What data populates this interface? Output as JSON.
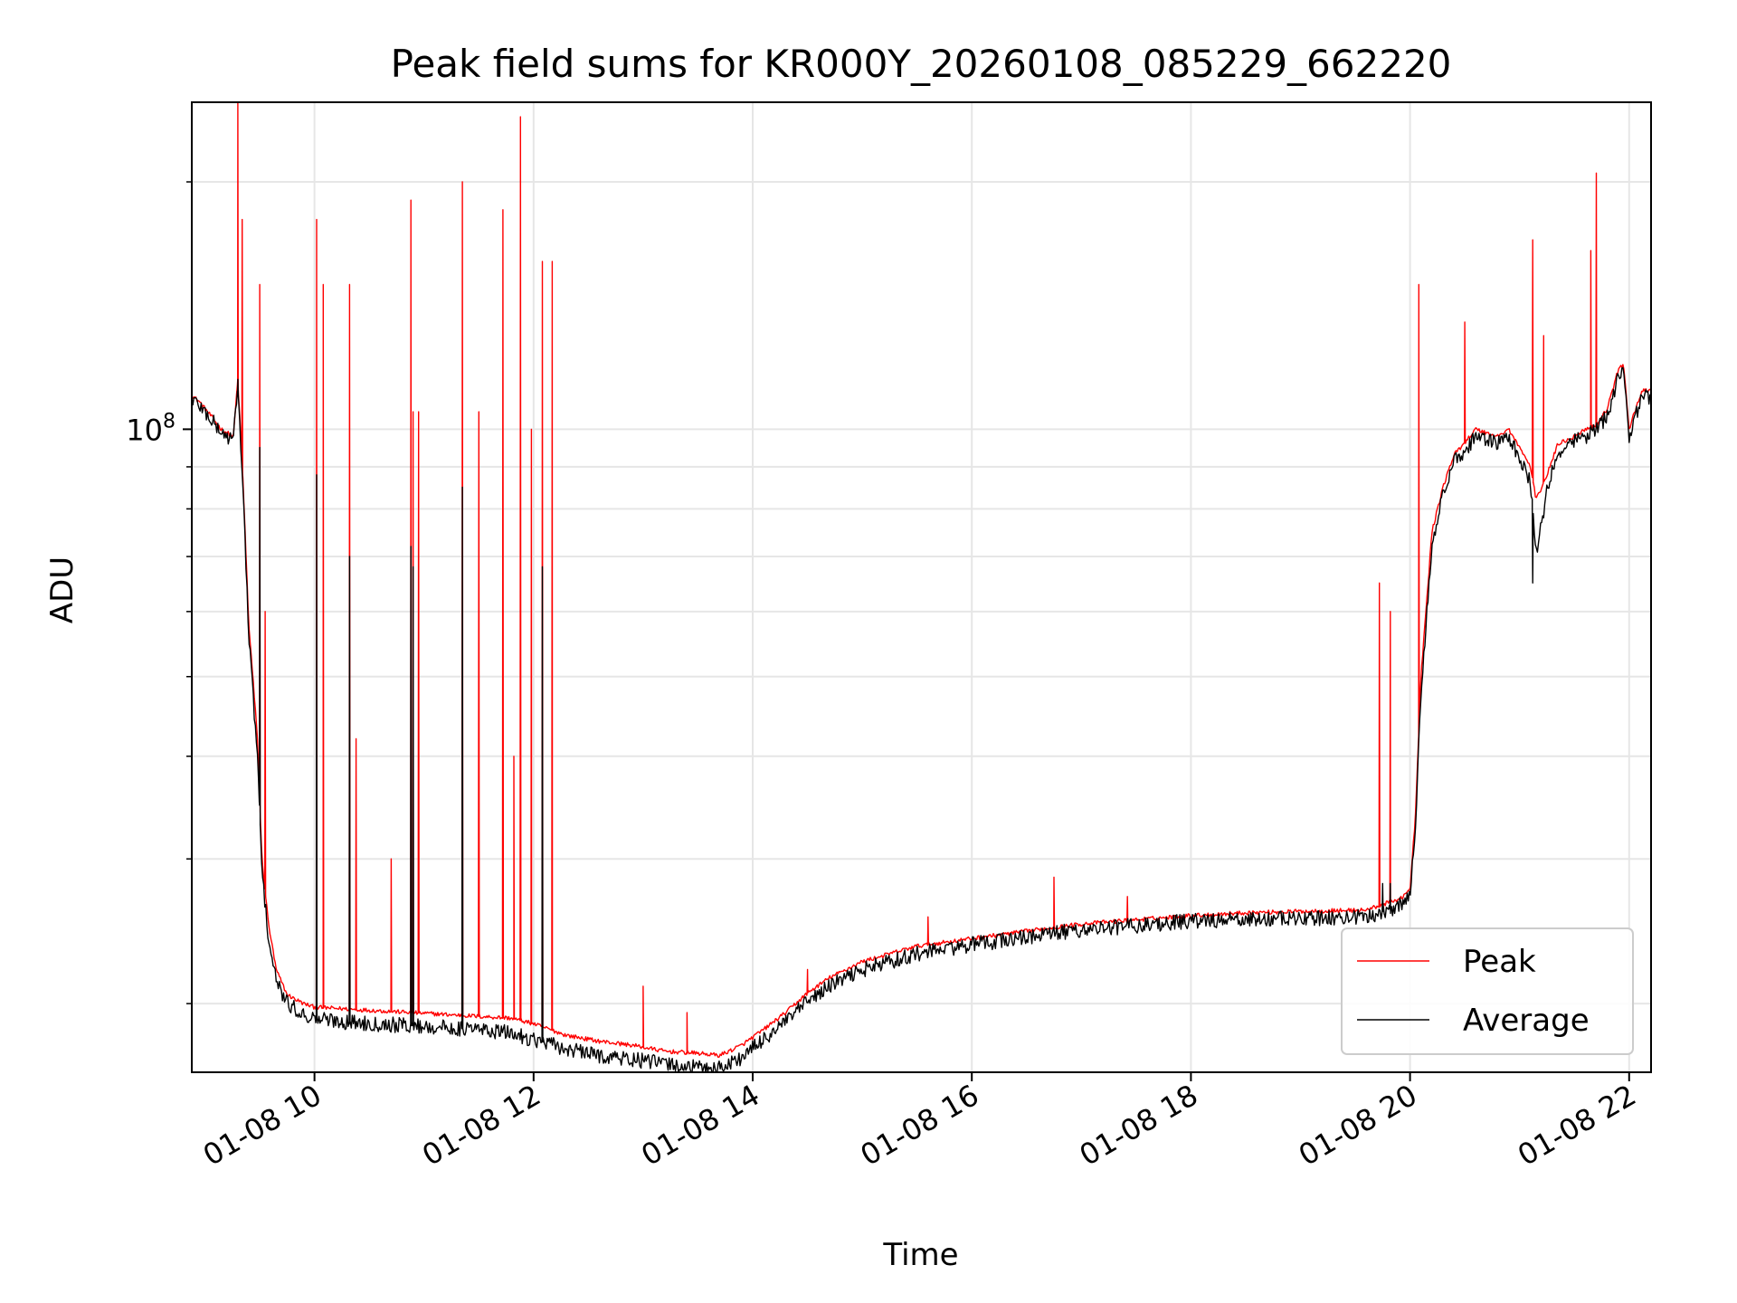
{
  "chart_data": {
    "type": "line",
    "title": "Peak field sums for KR000Y_20260108_085229_662220",
    "xlabel": "Time",
    "ylabel": "ADU",
    "yscale": "log",
    "grid": true,
    "legend_position": "lower-right",
    "xlim_hours": [
      8.88,
      22.2
    ],
    "ylim": [
      16500000,
      250000000
    ],
    "x_ticks": [
      {
        "value": 10,
        "label": "01-08 10"
      },
      {
        "value": 12,
        "label": "01-08 12"
      },
      {
        "value": 14,
        "label": "01-08 14"
      },
      {
        "value": 16,
        "label": "01-08 16"
      },
      {
        "value": 18,
        "label": "01-08 18"
      },
      {
        "value": 20,
        "label": "01-08 20"
      },
      {
        "value": 22,
        "label": "01-08 22"
      }
    ],
    "y_major_ticks": [
      {
        "value": 100000000,
        "base": "10",
        "exp": "8"
      }
    ],
    "y_minor_ticks": [
      20000000,
      30000000,
      40000000,
      50000000,
      60000000,
      70000000,
      80000000,
      90000000,
      200000000
    ],
    "x_unit": "hours since 01-08 00:00",
    "series": [
      {
        "name": "Peak",
        "color": "#ff0000",
        "x": [
          8.88,
          8.95,
          9.05,
          9.15,
          9.26,
          9.3,
          9.35,
          9.4,
          9.48,
          9.52,
          9.58,
          9.65,
          9.75,
          9.9,
          10.0,
          10.3,
          10.6,
          10.9,
          11.2,
          11.5,
          11.8,
          12.0,
          12.3,
          12.6,
          12.9,
          13.2,
          13.5,
          13.7,
          13.9,
          14.1,
          14.3,
          14.5,
          14.7,
          15.0,
          15.5,
          16.0,
          16.5,
          17.0,
          17.5,
          18.0,
          18.5,
          19.0,
          19.6,
          19.9,
          20.0,
          20.05,
          20.1,
          20.2,
          20.3,
          20.4,
          20.6,
          20.8,
          20.9,
          21.0,
          21.1,
          21.15,
          21.25,
          21.35,
          21.5,
          21.6,
          21.7,
          21.8,
          21.9,
          21.95,
          22.0,
          22.05,
          22.1,
          22.15,
          22.2
        ],
        "y": [
          110000000,
          108000000,
          104000000,
          100000000,
          98000000,
          115000000,
          85000000,
          58000000,
          42000000,
          30000000,
          25000000,
          22000000,
          20500000,
          20000000,
          19800000,
          19700000,
          19600000,
          19500000,
          19400000,
          19300000,
          19200000,
          18900000,
          18300000,
          18000000,
          17800000,
          17500000,
          17400000,
          17300000,
          17800000,
          18600000,
          19500000,
          20600000,
          21500000,
          22500000,
          23500000,
          24000000,
          24500000,
          25000000,
          25300000,
          25600000,
          25800000,
          25900000,
          26000000,
          26800000,
          27500000,
          34000000,
          50000000,
          75000000,
          85000000,
          93000000,
          100000000,
          98000000,
          100000000,
          95000000,
          90000000,
          82000000,
          88000000,
          96000000,
          98000000,
          100000000,
          101000000,
          106000000,
          118000000,
          120000000,
          100000000,
          105000000,
          110000000,
          112000000,
          111000000
        ],
        "spikes": [
          [
            9.3,
            250000000
          ],
          [
            9.34,
            180000000
          ],
          [
            9.5,
            150000000
          ],
          [
            9.55,
            60000000
          ],
          [
            10.02,
            180000000
          ],
          [
            10.08,
            150000000
          ],
          [
            10.32,
            150000000
          ],
          [
            10.38,
            42000000
          ],
          [
            10.7,
            30000000
          ],
          [
            10.88,
            190000000
          ],
          [
            10.9,
            105000000
          ],
          [
            10.95,
            105000000
          ],
          [
            11.35,
            200000000
          ],
          [
            11.5,
            105000000
          ],
          [
            11.72,
            185000000
          ],
          [
            11.82,
            40000000
          ],
          [
            11.88,
            240000000
          ],
          [
            11.98,
            100000000
          ],
          [
            12.08,
            160000000
          ],
          [
            12.17,
            160000000
          ],
          [
            13.0,
            21000000
          ],
          [
            13.4,
            19500000
          ],
          [
            14.5,
            22000000
          ],
          [
            15.6,
            25500000
          ],
          [
            16.75,
            28500000
          ],
          [
            17.42,
            27000000
          ],
          [
            19.72,
            65000000
          ],
          [
            19.82,
            60000000
          ],
          [
            20.08,
            150000000
          ],
          [
            20.5,
            135000000
          ],
          [
            21.12,
            170000000
          ],
          [
            21.22,
            130000000
          ],
          [
            21.65,
            165000000
          ],
          [
            21.7,
            205000000
          ]
        ]
      },
      {
        "name": "Average",
        "color": "#000000",
        "x": [
          8.88,
          8.95,
          9.05,
          9.15,
          9.26,
          9.3,
          9.35,
          9.4,
          9.48,
          9.52,
          9.58,
          9.65,
          9.75,
          9.9,
          10.0,
          10.3,
          10.6,
          10.9,
          11.2,
          11.5,
          11.8,
          12.0,
          12.3,
          12.6,
          12.9,
          13.2,
          13.5,
          13.7,
          13.9,
          14.1,
          14.3,
          14.5,
          14.7,
          15.0,
          15.5,
          16.0,
          16.5,
          17.0,
          17.5,
          18.0,
          18.5,
          19.0,
          19.6,
          19.9,
          20.0,
          20.05,
          20.1,
          20.2,
          20.3,
          20.4,
          20.6,
          20.8,
          20.9,
          21.0,
          21.1,
          21.15,
          21.25,
          21.35,
          21.5,
          21.6,
          21.7,
          21.8,
          21.9,
          21.95,
          22.0,
          22.05,
          22.1,
          22.15,
          22.2
        ],
        "y": [
          109000000,
          107000000,
          103000000,
          99000000,
          97000000,
          113000000,
          83000000,
          56000000,
          40000000,
          29000000,
          24000000,
          21300000,
          20000000,
          19400000,
          19200000,
          19000000,
          18900000,
          18800000,
          18700000,
          18600000,
          18400000,
          18100000,
          17600000,
          17300000,
          17100000,
          16900000,
          16700000,
          16700000,
          17200000,
          18100000,
          19000000,
          20100000,
          21000000,
          22000000,
          23000000,
          23600000,
          24100000,
          24600000,
          24900000,
          25200000,
          25300000,
          25400000,
          25500000,
          26300000,
          27000000,
          33000000,
          48000000,
          73000000,
          83000000,
          91000000,
          98000000,
          96000000,
          98000000,
          92000000,
          86000000,
          70000000,
          84000000,
          94000000,
          97000000,
          98000000,
          100000000,
          104000000,
          116000000,
          118000000,
          98000000,
          103000000,
          108000000,
          110000000,
          109000000
        ],
        "spikes": [
          [
            9.3,
            115000000
          ],
          [
            9.5,
            95000000
          ],
          [
            10.02,
            88000000
          ],
          [
            10.32,
            70000000
          ],
          [
            10.88,
            72000000
          ],
          [
            10.9,
            68000000
          ],
          [
            11.35,
            85000000
          ],
          [
            12.08,
            68000000
          ],
          [
            19.75,
            28000000
          ],
          [
            19.82,
            28000000
          ],
          [
            21.12,
            65000000
          ]
        ]
      }
    ]
  }
}
